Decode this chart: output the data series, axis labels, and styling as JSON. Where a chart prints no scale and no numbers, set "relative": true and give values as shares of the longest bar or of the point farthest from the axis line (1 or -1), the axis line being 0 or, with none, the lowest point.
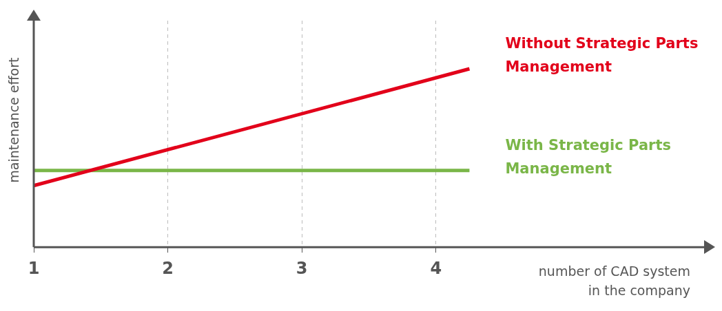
{
  "chart_data": {
    "type": "line",
    "relative": true,
    "xlabel": "number of CAD system\nin the company",
    "ylabel": "maintenance effort",
    "x": [
      1,
      4.25
    ],
    "xlim": [
      1,
      6
    ],
    "xticks": [
      1,
      2,
      3,
      4
    ],
    "grid": "x",
    "legend": false,
    "marker": "none",
    "series": [
      {
        "name": "Without Strategic Parts Management",
        "color": "#e2001a",
        "values": [
          0.345,
          1
        ]
      },
      {
        "name": "With Strategic Parts Management",
        "color": "#7ab648",
        "values": [
          0.43,
          0.43
        ]
      }
    ]
  }
}
